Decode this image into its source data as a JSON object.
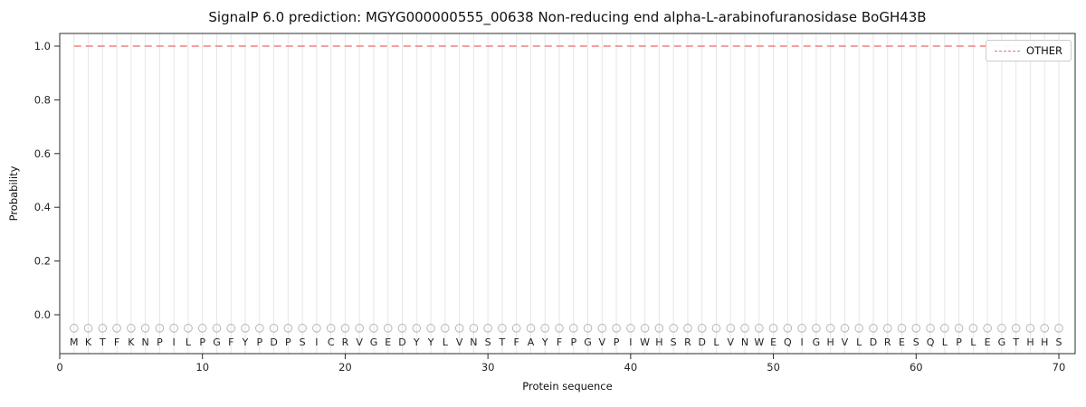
{
  "figure": {
    "title": "SignalP 6.0 prediction: MGYG000000555_00638 Non-reducing end alpha-L-arabinofuranosidase BoGH43B",
    "xlabel": "Protein sequence",
    "ylabel": "Probability",
    "legend": {
      "position": "upper right",
      "entries": [
        {
          "label": "OTHER",
          "color": "#ee7272",
          "line_style": "dashed"
        }
      ]
    }
  },
  "chart_data": {
    "type": "line",
    "title": "SignalP 6.0 prediction: MGYG000000555_00638 Non-reducing end alpha-L-arabinofuranosidase BoGH43B",
    "xlabel": "Protein sequence",
    "ylabel": "Probability",
    "x_ticks": [
      0,
      10,
      20,
      30,
      40,
      50,
      60,
      70
    ],
    "y_ticks": [
      0.0,
      0.2,
      0.4,
      0.6,
      0.8,
      1.0
    ],
    "xlim": [
      0,
      71.3
    ],
    "ylim": [
      -0.145,
      1.047
    ],
    "grid": {
      "vertical_line_per_residue": true,
      "color": "#e6e6e6"
    },
    "sequence": "MKTFKNPILPGFYPDPSICRVGEDYYLVNSTFAYFPGVPIWHSRDLVNWEQIGHVLDRESQLPLEGTHHS",
    "residue_markers": {
      "shape": "open-circle",
      "y_value": -0.05,
      "stroke": "#b5b5b5"
    },
    "series": [
      {
        "name": "OTHER",
        "color": "#ee7272",
        "line_style": "dashed",
        "x_start": 1,
        "x_end": 70,
        "constant_value": 1.0
      }
    ],
    "legend_position": "upper right"
  }
}
